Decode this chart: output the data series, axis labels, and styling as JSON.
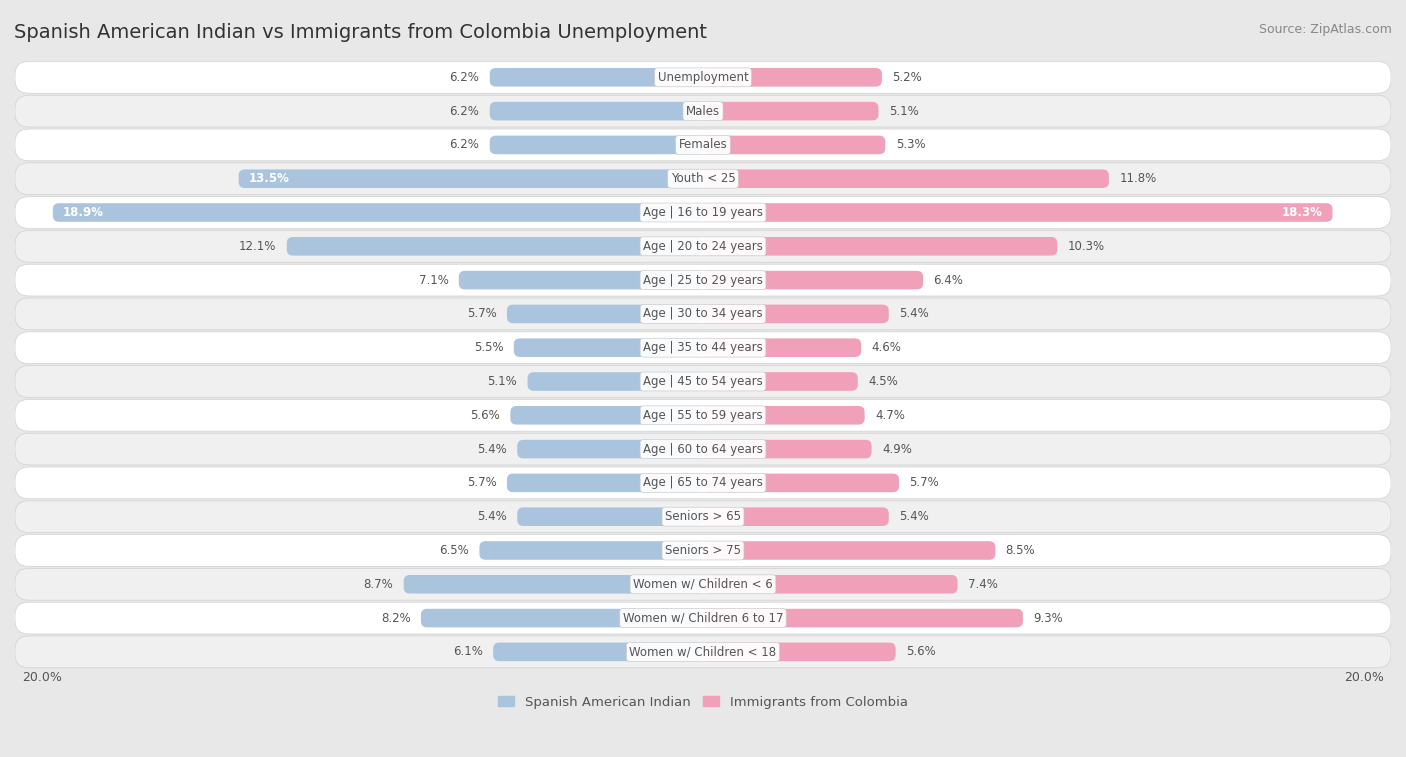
{
  "title": "Spanish American Indian vs Immigrants from Colombia Unemployment",
  "source": "Source: ZipAtlas.com",
  "categories": [
    "Unemployment",
    "Males",
    "Females",
    "Youth < 25",
    "Age | 16 to 19 years",
    "Age | 20 to 24 years",
    "Age | 25 to 29 years",
    "Age | 30 to 34 years",
    "Age | 35 to 44 years",
    "Age | 45 to 54 years",
    "Age | 55 to 59 years",
    "Age | 60 to 64 years",
    "Age | 65 to 74 years",
    "Seniors > 65",
    "Seniors > 75",
    "Women w/ Children < 6",
    "Women w/ Children 6 to 17",
    "Women w/ Children < 18"
  ],
  "left_values": [
    6.2,
    6.2,
    6.2,
    13.5,
    18.9,
    12.1,
    7.1,
    5.7,
    5.5,
    5.1,
    5.6,
    5.4,
    5.7,
    5.4,
    6.5,
    8.7,
    8.2,
    6.1
  ],
  "right_values": [
    5.2,
    5.1,
    5.3,
    11.8,
    18.3,
    10.3,
    6.4,
    5.4,
    4.6,
    4.5,
    4.7,
    4.9,
    5.7,
    5.4,
    8.5,
    7.4,
    9.3,
    5.6
  ],
  "left_color": "#aac4de",
  "right_color": "#f0a0b8",
  "left_label": "Spanish American Indian",
  "right_label": "Immigrants from Colombia",
  "axis_max": 20.0,
  "bg_color": "#e8e8e8",
  "title_fontsize": 14,
  "source_fontsize": 9,
  "label_fontsize": 8.5,
  "value_fontsize": 8.5
}
